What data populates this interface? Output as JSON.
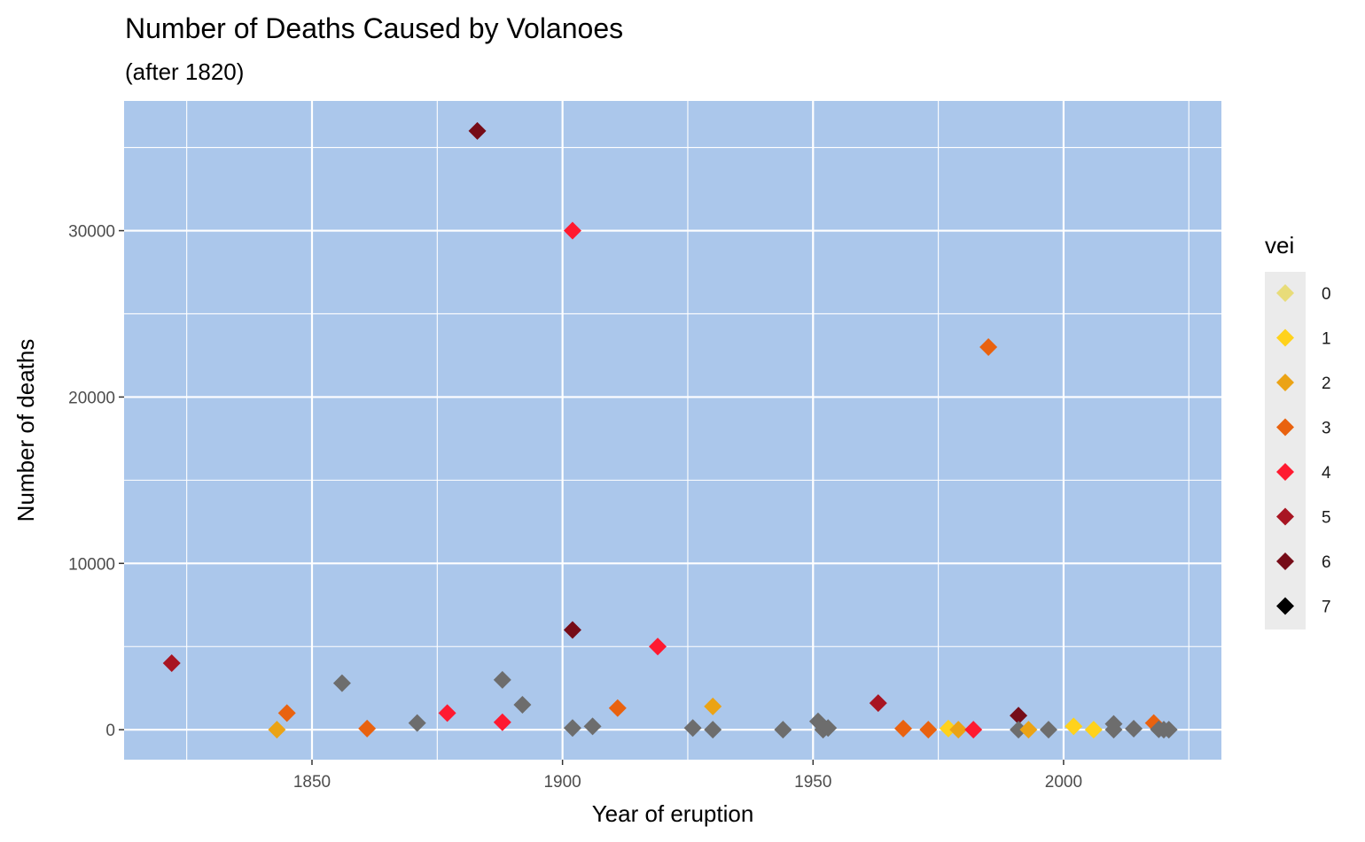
{
  "chart_data": {
    "type": "scatter",
    "title": "Number of Deaths Caused by Volanoes",
    "subtitle": "(after 1820)",
    "xlabel": "Year of eruption",
    "ylabel": "Number of deaths",
    "xlim": [
      1812.5,
      2031.5
    ],
    "ylim": [
      -1800,
      37800
    ],
    "x_ticks": [
      1850,
      1900,
      1950,
      2000
    ],
    "y_ticks": [
      0,
      10000,
      20000,
      30000
    ],
    "x_tick_labels": [
      "1850",
      "1900",
      "1950",
      "2000"
    ],
    "y_tick_labels": [
      "0",
      "10000",
      "20000",
      "30000"
    ],
    "grid": true,
    "marker": "diamond",
    "panel_background": "#abc7eb",
    "legend": {
      "title": "vei",
      "position": "right",
      "items": [
        {
          "label": "0",
          "color": "#e8dc79"
        },
        {
          "label": "1",
          "color": "#ffd21c"
        },
        {
          "label": "2",
          "color": "#eba315"
        },
        {
          "label": "3",
          "color": "#e9620f"
        },
        {
          "label": "4",
          "color": "#ff1a30"
        },
        {
          "label": "5",
          "color": "#a81522"
        },
        {
          "label": "6",
          "color": "#760c18"
        },
        {
          "label": "7",
          "color": "#000000"
        }
      ]
    },
    "na_color": "#6d6d6d",
    "points": [
      {
        "x": 1822,
        "y": 4000,
        "vei": "5"
      },
      {
        "x": 1843,
        "y": 0,
        "vei": "2"
      },
      {
        "x": 1845,
        "y": 1000,
        "vei": "3"
      },
      {
        "x": 1856,
        "y": 2800,
        "vei": "NA"
      },
      {
        "x": 1861,
        "y": 70,
        "vei": "3"
      },
      {
        "x": 1871,
        "y": 400,
        "vei": "NA"
      },
      {
        "x": 1877,
        "y": 1000,
        "vei": "4"
      },
      {
        "x": 1883,
        "y": 36000,
        "vei": "6"
      },
      {
        "x": 1888,
        "y": 3000,
        "vei": "NA"
      },
      {
        "x": 1888,
        "y": 450,
        "vei": "4"
      },
      {
        "x": 1892,
        "y": 1500,
        "vei": "NA"
      },
      {
        "x": 1902,
        "y": 30000,
        "vei": "4"
      },
      {
        "x": 1902,
        "y": 6000,
        "vei": "6"
      },
      {
        "x": 1902,
        "y": 100,
        "vei": "NA"
      },
      {
        "x": 1906,
        "y": 200,
        "vei": "NA"
      },
      {
        "x": 1911,
        "y": 1300,
        "vei": "3"
      },
      {
        "x": 1919,
        "y": 5000,
        "vei": "4"
      },
      {
        "x": 1926,
        "y": 100,
        "vei": "NA"
      },
      {
        "x": 1930,
        "y": 1400,
        "vei": "2"
      },
      {
        "x": 1930,
        "y": 0,
        "vei": "NA"
      },
      {
        "x": 1944,
        "y": 0,
        "vei": "NA"
      },
      {
        "x": 1951,
        "y": 500,
        "vei": "NA"
      },
      {
        "x": 1952,
        "y": 0,
        "vei": "NA"
      },
      {
        "x": 1953,
        "y": 100,
        "vei": "NA"
      },
      {
        "x": 1963,
        "y": 1600,
        "vei": "5"
      },
      {
        "x": 1968,
        "y": 70,
        "vei": "3"
      },
      {
        "x": 1973,
        "y": 0,
        "vei": "3"
      },
      {
        "x": 1977,
        "y": 70,
        "vei": "1"
      },
      {
        "x": 1979,
        "y": 0,
        "vei": "2"
      },
      {
        "x": 1982,
        "y": 0,
        "vei": "4"
      },
      {
        "x": 1985,
        "y": 23000,
        "vei": "3"
      },
      {
        "x": 1991,
        "y": 850,
        "vei": "6"
      },
      {
        "x": 1991,
        "y": 0,
        "vei": "NA"
      },
      {
        "x": 1993,
        "y": 0,
        "vei": "2"
      },
      {
        "x": 1997,
        "y": 0,
        "vei": "NA"
      },
      {
        "x": 2002,
        "y": 200,
        "vei": "1"
      },
      {
        "x": 2006,
        "y": 0,
        "vei": "1"
      },
      {
        "x": 2010,
        "y": 350,
        "vei": "NA"
      },
      {
        "x": 2010,
        "y": 0,
        "vei": "NA"
      },
      {
        "x": 2014,
        "y": 60,
        "vei": "NA"
      },
      {
        "x": 2018,
        "y": 400,
        "vei": "3"
      },
      {
        "x": 2019,
        "y": 20,
        "vei": "NA"
      },
      {
        "x": 2020,
        "y": 0,
        "vei": "NA"
      },
      {
        "x": 2021,
        "y": 0,
        "vei": "NA"
      }
    ]
  }
}
